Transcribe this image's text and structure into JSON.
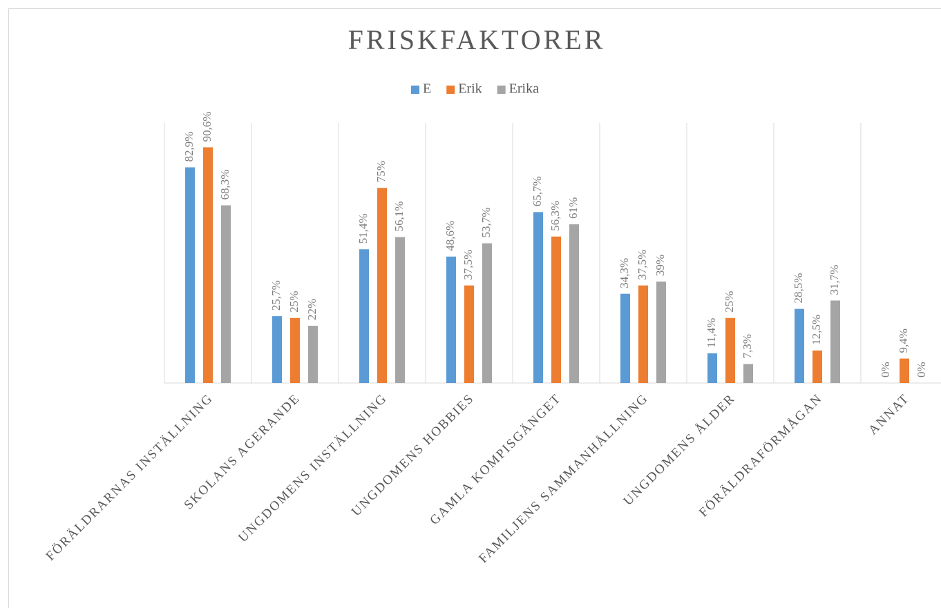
{
  "chart_data": {
    "type": "bar",
    "title": "FRISKFAKTORER",
    "categories": [
      "FÖRÄLDRARNAS INSTÄLLNING",
      "SKOLANS AGERANDE",
      "UNGDOMENS INSTÄLLNING",
      "UNGDOMENS HOBBIES",
      "GAMLA KOMPISGÄNGET",
      "FAMILJENS SAMMANHÅLLNING",
      "UNGDOMENS ÅLDER",
      "FÖRÄLDRAFÖRMÅGAN",
      "ANNAT"
    ],
    "series": [
      {
        "name": "E",
        "color": "#5b9bd5",
        "values": [
          82.9,
          25.7,
          51.4,
          48.6,
          65.7,
          34.3,
          11.4,
          28.5,
          0
        ],
        "value_labels": [
          "82,9%",
          "25,7%",
          "51,4%",
          "48,6%",
          "65,7%",
          "34,3%",
          "11,4%",
          "28,5%",
          "0%"
        ]
      },
      {
        "name": "Erik",
        "color": "#ed7d31",
        "values": [
          90.6,
          25,
          75,
          37.5,
          56.3,
          37.5,
          25,
          12.5,
          9.4
        ],
        "value_labels": [
          "90,6%",
          "25%",
          "75%",
          "37,5%",
          "56,3%",
          "37,5%",
          "25%",
          "12,5%",
          "9,4%"
        ]
      },
      {
        "name": "Erika",
        "color": "#a5a5a5",
        "values": [
          68.3,
          22,
          56.1,
          53.7,
          61,
          39,
          7.3,
          31.7,
          0
        ],
        "value_labels": [
          "68,3%",
          "22%",
          "56,1%",
          "53,7%",
          "61%",
          "39%",
          "7,3%",
          "31,7%",
          "0%"
        ]
      }
    ],
    "ylim": [
      0,
      100
    ],
    "legend": "top"
  }
}
